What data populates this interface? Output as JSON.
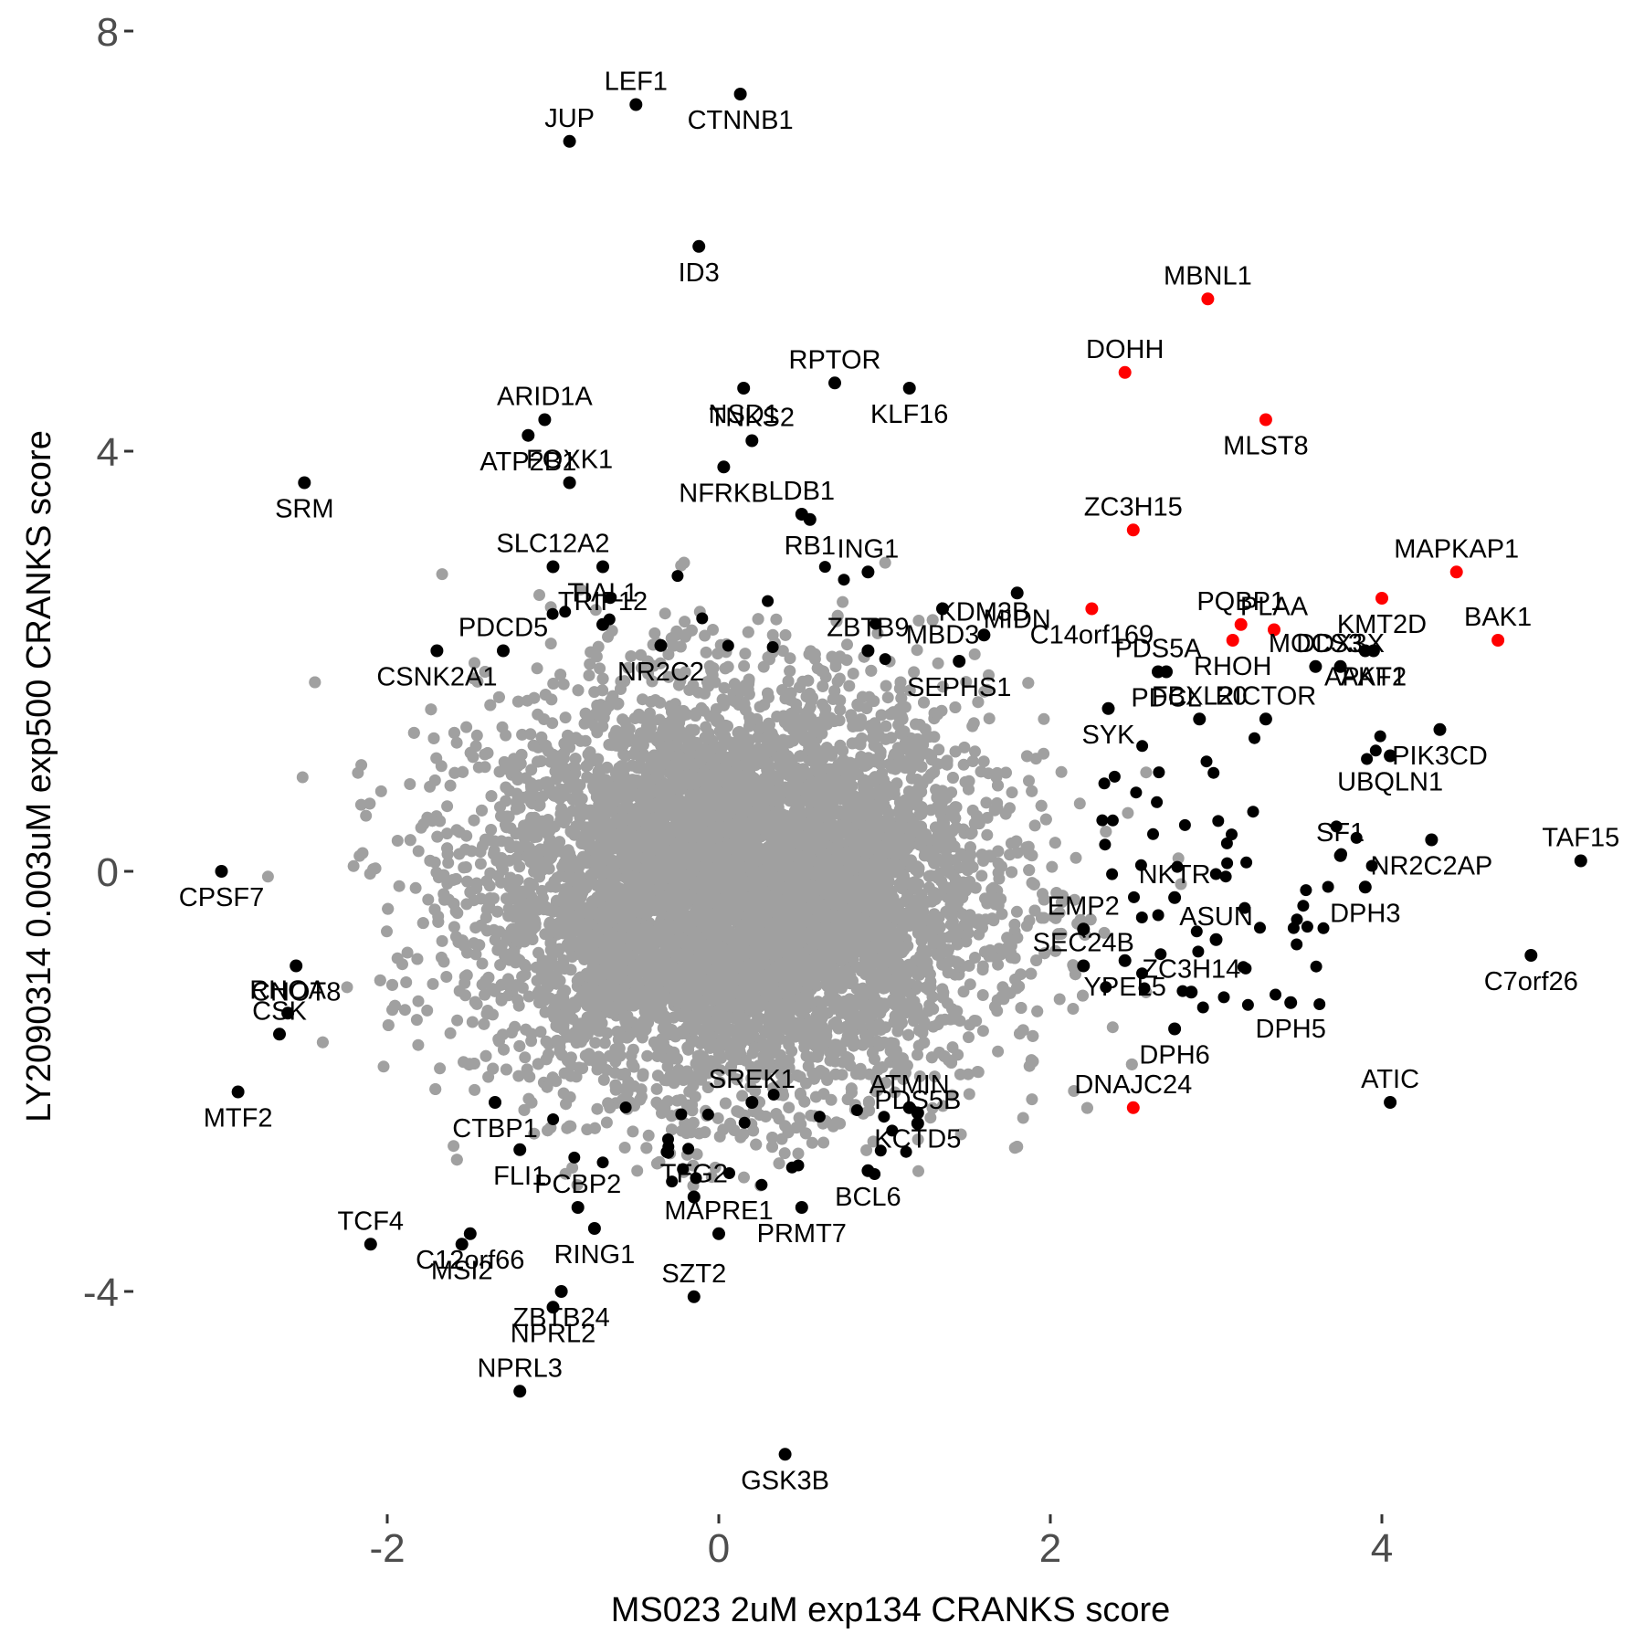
{
  "chart_data": {
    "type": "scatter",
    "xlabel": "MS023 2uM exp134 CRANKS score",
    "ylabel": "LY2090314 0.003uM exp500 CRANKS score",
    "xlim": [
      -3.25,
      5.45
    ],
    "ylim": [
      -6.2,
      8.2
    ],
    "x_ticks": [
      "-2",
      "0",
      "2",
      "4"
    ],
    "y_ticks": [
      "-4",
      "0",
      "4",
      "8"
    ],
    "grid": false,
    "legend": "none",
    "colors": {
      "background_points": "#a0a0a0",
      "labeled_points": "#000000",
      "highlighted_points": "#ff0000",
      "tick_label": "#4d4d4d"
    },
    "background_cloud": {
      "description_count": 20000,
      "center": [
        0.1,
        -0.2
      ],
      "sd_x": 0.75,
      "sd_y": 0.95
    },
    "labeled_points": [
      {
        "gene": "LEF1",
        "x": -0.5,
        "y": 7.3,
        "color": "black"
      },
      {
        "gene": "CTNNB1",
        "x": 0.13,
        "y": 7.4,
        "color": "black"
      },
      {
        "gene": "JUP",
        "x": -0.9,
        "y": 6.95,
        "color": "black"
      },
      {
        "gene": "ID3",
        "x": -0.12,
        "y": 5.95,
        "color": "black"
      },
      {
        "gene": "MBNL1",
        "x": 2.95,
        "y": 5.45,
        "color": "red"
      },
      {
        "gene": "NSD1",
        "x": 0.15,
        "y": 4.6,
        "color": "black"
      },
      {
        "gene": "RPTOR",
        "x": 0.7,
        "y": 4.65,
        "color": "black"
      },
      {
        "gene": "KLF16",
        "x": 1.15,
        "y": 4.6,
        "color": "black"
      },
      {
        "gene": "DOHH",
        "x": 2.45,
        "y": 4.75,
        "color": "red"
      },
      {
        "gene": "MLST8",
        "x": 3.3,
        "y": 4.3,
        "color": "red"
      },
      {
        "gene": "ARID1A",
        "x": -1.05,
        "y": 4.3,
        "color": "black"
      },
      {
        "gene": "NFRKB",
        "x": 0.03,
        "y": 3.85,
        "color": "black"
      },
      {
        "gene": "TNKS2",
        "x": 0.2,
        "y": 4.1,
        "color": "black"
      },
      {
        "gene": "ATP2B1",
        "x": -1.15,
        "y": 4.15,
        "color": "black"
      },
      {
        "gene": "FOXK1",
        "x": -0.9,
        "y": 3.7,
        "color": "black"
      },
      {
        "gene": "SRM",
        "x": -2.5,
        "y": 3.7,
        "color": "black"
      },
      {
        "gene": "LDB1",
        "x": 0.5,
        "y": 3.4,
        "color": "black"
      },
      {
        "gene": "RB1",
        "x": 0.55,
        "y": 3.35,
        "color": "black"
      },
      {
        "gene": "ZC3H15",
        "x": 2.5,
        "y": 3.25,
        "color": "red"
      },
      {
        "gene": "MIDN",
        "x": 1.8,
        "y": 2.65,
        "color": "black"
      },
      {
        "gene": "SLC12A2",
        "x": -1.0,
        "y": 2.9,
        "color": "black"
      },
      {
        "gene": "TIAL1",
        "x": -0.7,
        "y": 2.9,
        "color": "black"
      },
      {
        "gene": "ING1",
        "x": 0.9,
        "y": 2.85,
        "color": "black"
      },
      {
        "gene": "KMT2D",
        "x": 4.0,
        "y": 2.6,
        "color": "red"
      },
      {
        "gene": "MAPKAP1",
        "x": 4.45,
        "y": 2.85,
        "color": "red"
      },
      {
        "gene": "C14orf169",
        "x": 2.25,
        "y": 2.5,
        "color": "red"
      },
      {
        "gene": "PQBP1",
        "x": 3.15,
        "y": 2.35,
        "color": "red"
      },
      {
        "gene": "RHOH",
        "x": 3.1,
        "y": 2.2,
        "color": "red"
      },
      {
        "gene": "PLAA",
        "x": 3.35,
        "y": 2.3,
        "color": "red"
      },
      {
        "gene": "MBD3",
        "x": 1.35,
        "y": 2.5,
        "color": "black"
      },
      {
        "gene": "TRIP12",
        "x": -0.7,
        "y": 2.35,
        "color": "black"
      },
      {
        "gene": "CSNK2A1",
        "x": -1.7,
        "y": 2.1,
        "color": "black"
      },
      {
        "gene": "KDM3B",
        "x": 1.6,
        "y": 2.25,
        "color": "black"
      },
      {
        "gene": "PDCL",
        "x": 2.7,
        "y": 1.9,
        "color": "black"
      },
      {
        "gene": "MOCS3",
        "x": 3.6,
        "y": 1.95,
        "color": "black"
      },
      {
        "gene": "AKT2",
        "x": 3.95,
        "y": 2.1,
        "color": "black"
      },
      {
        "gene": "BAK1",
        "x": 4.7,
        "y": 2.2,
        "color": "red"
      },
      {
        "gene": "NR2C2",
        "x": -0.35,
        "y": 2.15,
        "color": "black"
      },
      {
        "gene": "ZBTB9",
        "x": 0.9,
        "y": 2.1,
        "color": "black"
      },
      {
        "gene": "SEPHS1",
        "x": 1.45,
        "y": 2.0,
        "color": "black"
      },
      {
        "gene": "DDX3X",
        "x": 3.75,
        "y": 1.95,
        "color": "black"
      },
      {
        "gene": "APAF1",
        "x": 3.9,
        "y": 2.1,
        "color": "black"
      },
      {
        "gene": "PDCD5",
        "x": -1.3,
        "y": 2.1,
        "color": "black"
      },
      {
        "gene": "SYK",
        "x": 2.35,
        "y": 1.55,
        "color": "black"
      },
      {
        "gene": "RICTOR",
        "x": 3.3,
        "y": 1.45,
        "color": "black"
      },
      {
        "gene": "PIK3CD",
        "x": 4.35,
        "y": 1.35,
        "color": "black"
      },
      {
        "gene": "FBXL20",
        "x": 2.9,
        "y": 1.45,
        "color": "black"
      },
      {
        "gene": "UBQLN1",
        "x": 4.05,
        "y": 1.1,
        "color": "black"
      },
      {
        "gene": "SF1",
        "x": 3.75,
        "y": 0.15,
        "color": "black"
      },
      {
        "gene": "NR2C2AP",
        "x": 4.3,
        "y": 0.3,
        "color": "black"
      },
      {
        "gene": "TAF15",
        "x": 5.2,
        "y": 0.1,
        "color": "black"
      },
      {
        "gene": "CPSF7",
        "x": -3.0,
        "y": 0.0,
        "color": "black"
      },
      {
        "gene": "NKTR",
        "x": 2.75,
        "y": -0.25,
        "color": "black"
      },
      {
        "gene": "DPH3",
        "x": 3.9,
        "y": -0.15,
        "color": "black"
      },
      {
        "gene": "EMP2",
        "x": 2.2,
        "y": -0.55,
        "color": "black"
      },
      {
        "gene": "CNOT8",
        "x": -2.55,
        "y": -0.9,
        "color": "black"
      },
      {
        "gene": "ASUN",
        "x": 3.0,
        "y": -0.65,
        "color": "black"
      },
      {
        "gene": "C7orf26",
        "x": 4.9,
        "y": -0.8,
        "color": "black"
      },
      {
        "gene": "SEC24B",
        "x": 2.2,
        "y": -0.9,
        "color": "black"
      },
      {
        "gene": "YPEL5",
        "x": 2.45,
        "y": -0.85,
        "color": "black"
      },
      {
        "gene": "RHOA",
        "x": -2.6,
        "y": -1.35,
        "color": "black"
      },
      {
        "gene": "DPH5",
        "x": 3.45,
        "y": -1.25,
        "color": "black"
      },
      {
        "gene": "ZC3H14",
        "x": 2.85,
        "y": -1.15,
        "color": "black"
      },
      {
        "gene": "DPH6",
        "x": 2.75,
        "y": -1.5,
        "color": "black"
      },
      {
        "gene": "CSK",
        "x": -2.65,
        "y": -1.55,
        "color": "black"
      },
      {
        "gene": "MTF2",
        "x": -2.9,
        "y": -2.1,
        "color": "black"
      },
      {
        "gene": "ATIC",
        "x": 4.05,
        "y": -2.2,
        "color": "black"
      },
      {
        "gene": "CTBP1",
        "x": -1.35,
        "y": -2.2,
        "color": "black"
      },
      {
        "gene": "SREK1",
        "x": 0.2,
        "y": -2.2,
        "color": "black"
      },
      {
        "gene": "KCTD5",
        "x": 1.2,
        "y": -2.3,
        "color": "black"
      },
      {
        "gene": "DNAJC24",
        "x": 2.5,
        "y": -2.25,
        "color": "red"
      },
      {
        "gene": "FLI1",
        "x": -1.2,
        "y": -2.65,
        "color": "black"
      },
      {
        "gene": "ATMIN",
        "x": 1.15,
        "y": -2.25,
        "color": "black"
      },
      {
        "gene": "BCL6",
        "x": 0.9,
        "y": -2.85,
        "color": "black"
      },
      {
        "gene": "PDS5B",
        "x": 1.2,
        "y": -2.4,
        "color": "black"
      },
      {
        "gene": "C12orf66",
        "x": -1.5,
        "y": -3.45,
        "color": "black"
      },
      {
        "gene": "TFG2",
        "x": -0.15,
        "y": -3.1,
        "color": "black"
      },
      {
        "gene": "PRMT7",
        "x": 0.5,
        "y": -3.2,
        "color": "black"
      },
      {
        "gene": "TCF4",
        "x": -2.1,
        "y": -3.55,
        "color": "black"
      },
      {
        "gene": "MSI2",
        "x": -1.55,
        "y": -3.55,
        "color": "black"
      },
      {
        "gene": "PCBP2",
        "x": -0.85,
        "y": -3.2,
        "color": "black"
      },
      {
        "gene": "RING1",
        "x": -0.75,
        "y": -3.4,
        "color": "black"
      },
      {
        "gene": "MAPRE1",
        "x": 0.0,
        "y": -3.45,
        "color": "black"
      },
      {
        "gene": "ZBTB24",
        "x": -0.95,
        "y": -4.0,
        "color": "black"
      },
      {
        "gene": "SZT2",
        "x": -0.15,
        "y": -4.05,
        "color": "black"
      },
      {
        "gene": "NPRL2",
        "x": -1.0,
        "y": -4.15,
        "color": "black"
      },
      {
        "gene": "NPRL3",
        "x": -1.2,
        "y": -4.95,
        "color": "black"
      },
      {
        "gene": "GSK3B",
        "x": 0.4,
        "y": -5.55,
        "color": "black"
      },
      {
        "gene": "PDS5A",
        "x": 2.65,
        "y": 1.9,
        "color": "black"
      }
    ]
  }
}
